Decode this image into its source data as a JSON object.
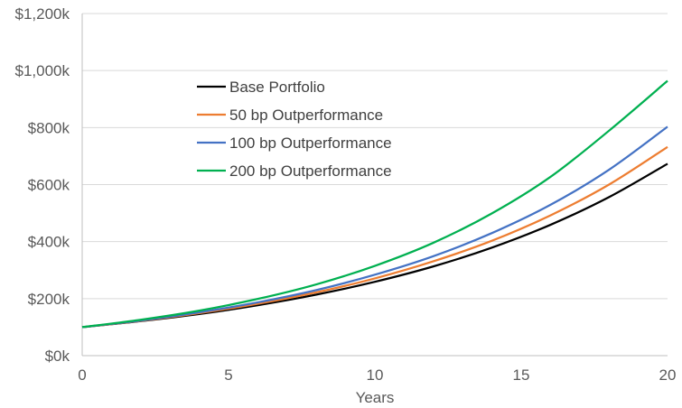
{
  "chart_data": {
    "type": "line",
    "title": "",
    "xlabel": "Years",
    "ylabel": "",
    "xlim": [
      0,
      20
    ],
    "ylim": [
      0,
      1200
    ],
    "x_ticks": [
      0,
      5,
      10,
      15,
      20
    ],
    "x_tick_labels": [
      "0",
      "5",
      "10",
      "15",
      "20"
    ],
    "y_ticks": [
      0,
      200,
      400,
      600,
      800,
      1000,
      1200
    ],
    "y_tick_labels": [
      "$0k",
      "$200k",
      "$400k",
      "$600k",
      "$800k",
      "$1,000k",
      "$1,200k"
    ],
    "grid": "horizontal",
    "legend_position": "top-left",
    "x": [
      0,
      2,
      4,
      6,
      8,
      10,
      12,
      14,
      16,
      18,
      20
    ],
    "series": [
      {
        "name": "Base Portfolio",
        "color": "#000000",
        "values": [
          100,
          121,
          146,
          177,
          214,
          259,
          313,
          379,
          459,
          556,
          673
        ]
      },
      {
        "name": "50 bp Outperformance",
        "color": "#ed7d31",
        "values": [
          100,
          122,
          149,
          182,
          222,
          271,
          331,
          403,
          492,
          600,
          732
        ]
      },
      {
        "name": "100 bp Outperformance",
        "color": "#4472c4",
        "values": [
          100,
          123,
          152,
          187,
          230,
          284,
          349,
          430,
          529,
          652,
          803
        ]
      },
      {
        "name": "200 bp Outperformance",
        "color": "#00b050",
        "values": [
          100,
          126,
          158,
          199,
          250,
          315,
          396,
          499,
          627,
          789,
          964
        ]
      }
    ]
  }
}
